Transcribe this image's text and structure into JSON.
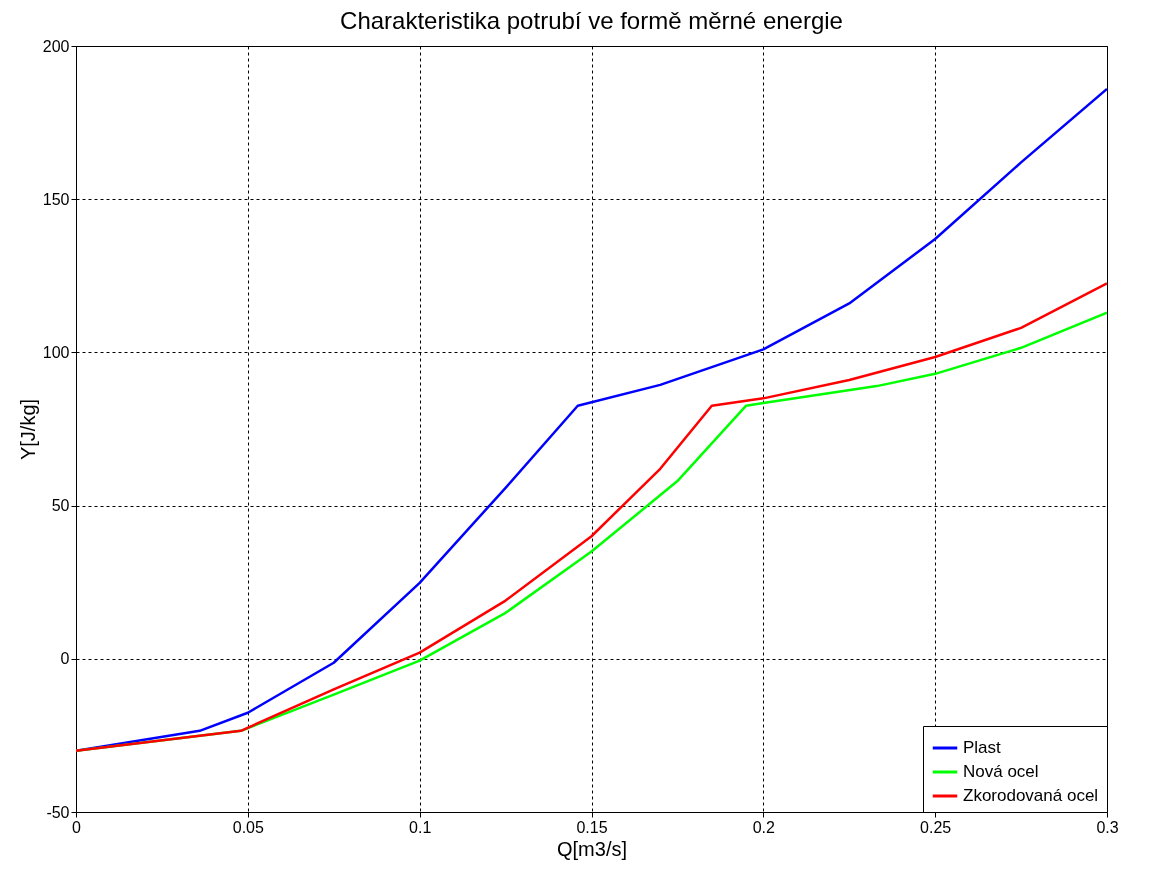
{
  "chart_data": {
    "type": "line",
    "title": "Charakteristika potrubí ve formě měrné energie",
    "xlabel": "Q[m3/s]",
    "ylabel": "Y[J/kg]",
    "xlim": [
      0,
      0.3
    ],
    "ylim": [
      -50,
      200
    ],
    "xticks": [
      0,
      0.05,
      0.1,
      0.15,
      0.2,
      0.25,
      0.3
    ],
    "yticks": [
      -50,
      0,
      50,
      100,
      150,
      200
    ],
    "grid": true,
    "legend": "bottom right",
    "marker": "none",
    "line_style": "solid",
    "series": [
      {
        "name": "Plast",
        "color": "#0000ff",
        "x": [
          0,
          0.036,
          0.05,
          0.075,
          0.1,
          0.125,
          0.146,
          0.17,
          0.2,
          0.225,
          0.25,
          0.275,
          0.3
        ],
        "values": [
          -30,
          -23.5,
          -17.6,
          -1.3,
          24.8,
          55.8,
          82.6,
          89.4,
          101,
          116,
          137,
          162,
          186
        ]
      },
      {
        "name": "Nová ocel",
        "color": "#00ff00",
        "x": [
          0,
          0.048,
          0.075,
          0.1,
          0.125,
          0.15,
          0.175,
          0.195,
          0.2,
          0.233,
          0.25,
          0.275,
          0.3
        ],
        "values": [
          -30,
          -23.5,
          -11.7,
          -0.6,
          15,
          35,
          58,
          82.6,
          83.5,
          89,
          93,
          101.5,
          113
        ]
      },
      {
        "name": "Zkorodovaná ocel",
        "color": "#ff0000",
        "x": [
          0,
          0.048,
          0.075,
          0.1,
          0.125,
          0.15,
          0.17,
          0.185,
          0.2,
          0.225,
          0.25,
          0.275,
          0.3
        ],
        "values": [
          -30,
          -23.5,
          -10,
          2,
          19,
          40,
          62,
          82.6,
          85,
          91,
          98.5,
          108,
          122.5
        ]
      }
    ]
  }
}
